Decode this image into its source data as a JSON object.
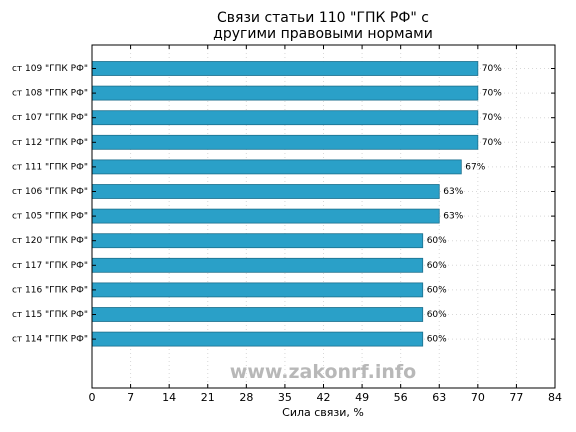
{
  "chart_data": {
    "type": "bar",
    "orientation": "horizontal",
    "title": [
      "Связи статьи 110 \"ГПК РФ\" с",
      "другими правовыми нормами"
    ],
    "xlabel": "Сила связи, %",
    "ylabel": "",
    "xlim": [
      0,
      84
    ],
    "xticks": [
      0,
      7,
      14,
      21,
      28,
      35,
      42,
      49,
      56,
      63,
      70,
      77,
      84
    ],
    "grid": true,
    "categories": [
      "ст 109 \"ГПК РФ\"",
      "ст 108 \"ГПК РФ\"",
      "ст 107 \"ГПК РФ\"",
      "ст 112 \"ГПК РФ\"",
      "ст 111 \"ГПК РФ\"",
      "ст 106 \"ГПК РФ\"",
      "ст 105 \"ГПК РФ\"",
      "ст 120 \"ГПК РФ\"",
      "ст 117 \"ГПК РФ\"",
      "ст 116 \"ГПК РФ\"",
      "ст 115 \"ГПК РФ\"",
      "ст 114 \"ГПК РФ\""
    ],
    "values": [
      70,
      70,
      70,
      70,
      67,
      63,
      63,
      60,
      60,
      60,
      60,
      60
    ],
    "value_labels": [
      "70%",
      "70%",
      "70%",
      "70%",
      "67%",
      "63%",
      "63%",
      "60%",
      "60%",
      "60%",
      "60%",
      "60%"
    ],
    "bar_color": "#2aa0c8"
  },
  "watermark": "www.zakonrf.info"
}
